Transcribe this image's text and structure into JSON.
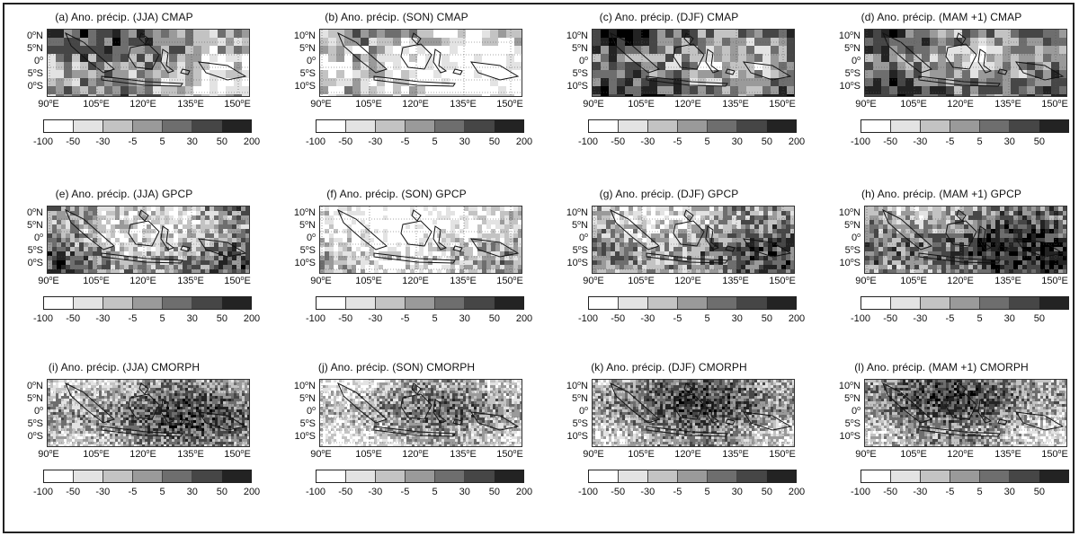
{
  "panels": [
    {
      "title": "(a) Ano. précip. (JJA) CMAP",
      "lat": [
        "0",
        "5",
        "0",
        "5",
        "0"
      ],
      "cbar": [
        "-100",
        "-50",
        "-30",
        "-5",
        "5",
        "30",
        "50",
        "200"
      ]
    },
    {
      "title": "(b) Ano. précip. (SON) CMAP",
      "lat": [
        "10",
        "5",
        "0",
        "5",
        "10"
      ],
      "cbar": [
        "-100",
        "-50",
        "-30",
        "-5",
        "5",
        "30",
        "50",
        "200"
      ]
    },
    {
      "title": "(c) Ano. précip. (DJF) CMAP",
      "lat": [
        "10",
        "5",
        "0",
        "5",
        "10"
      ],
      "cbar": [
        "-100",
        "-50",
        "-30",
        "-5",
        "5",
        "30",
        "50",
        "200"
      ]
    },
    {
      "title": "(d) Ano. précip. (MAM +1) CMAP",
      "lat": [
        "10",
        "5",
        "0",
        "5",
        "10"
      ],
      "cbar": [
        "-100",
        "-50",
        "-30",
        "-5",
        "5",
        "30",
        "50"
      ]
    },
    {
      "title": "(e) Ano. précip. (JJA) GPCP",
      "lat": [
        "0",
        "5",
        "0",
        "5",
        "0"
      ],
      "cbar": [
        "-100",
        "-50",
        "-30",
        "-5",
        "5",
        "30",
        "50",
        "200"
      ]
    },
    {
      "title": "(f) Ano. précip. (SON) GPCP",
      "lat": [
        "10",
        "5",
        "0",
        "5",
        "10"
      ],
      "cbar": [
        "-100",
        "-50",
        "-30",
        "-5",
        "5",
        "30",
        "50",
        "200"
      ]
    },
    {
      "title": "(g) Ano. précip. (DJF) GPCP",
      "lat": [
        "10",
        "5",
        "0",
        "5",
        "10"
      ],
      "cbar": [
        "-100",
        "-50",
        "-30",
        "-5",
        "5",
        "30",
        "50",
        "200"
      ]
    },
    {
      "title": "(h) Ano. précip. (MAM +1) GPCP",
      "lat": [
        "10",
        "5",
        "0",
        "5",
        "10"
      ],
      "cbar": [
        "-100",
        "-50",
        "-30",
        "-5",
        "5",
        "30",
        "50"
      ]
    },
    {
      "title": "(i) Ano. précip. (JJA) CMORPH",
      "lat": [
        "0",
        "5",
        "0",
        "5",
        "0"
      ],
      "cbar": [
        "-100",
        "-50",
        "-30",
        "-5",
        "5",
        "30",
        "50",
        "200"
      ]
    },
    {
      "title": "(j) Ano. précip. (SON) CMORPH",
      "lat": [
        "10",
        "5",
        "0",
        "5",
        "10"
      ],
      "cbar": [
        "-100",
        "-50",
        "-30",
        "-5",
        "5",
        "30",
        "50",
        "200"
      ]
    },
    {
      "title": "(k) Ano. précip. (DJF) CMORPH",
      "lat": [
        "10",
        "5",
        "0",
        "5",
        "10"
      ],
      "cbar": [
        "-100",
        "-50",
        "-30",
        "-5",
        "5",
        "30",
        "50",
        "200"
      ]
    },
    {
      "title": "(l) Ano. précip. (MAM +1) CMORPH",
      "lat": [
        "10",
        "5",
        "0",
        "5",
        "10"
      ],
      "cbar": [
        "-100",
        "-50",
        "-30",
        "-5",
        "5",
        "30",
        "50"
      ]
    }
  ],
  "lat_suffix": [
    "N",
    "N",
    "",
    "S",
    "S"
  ],
  "lon_ticks": [
    "90",
    "105",
    "120",
    "135",
    "150"
  ],
  "lon_suffix": "E",
  "degree_mark": "o",
  "colorbar_colors": [
    "#ffffff",
    "#e3e3e3",
    "#c3c3c3",
    "#9a9a9a",
    "#6e6e6e",
    "#464646",
    "#232323",
    "#000000"
  ],
  "seaColor": "#d6d6d6"
}
